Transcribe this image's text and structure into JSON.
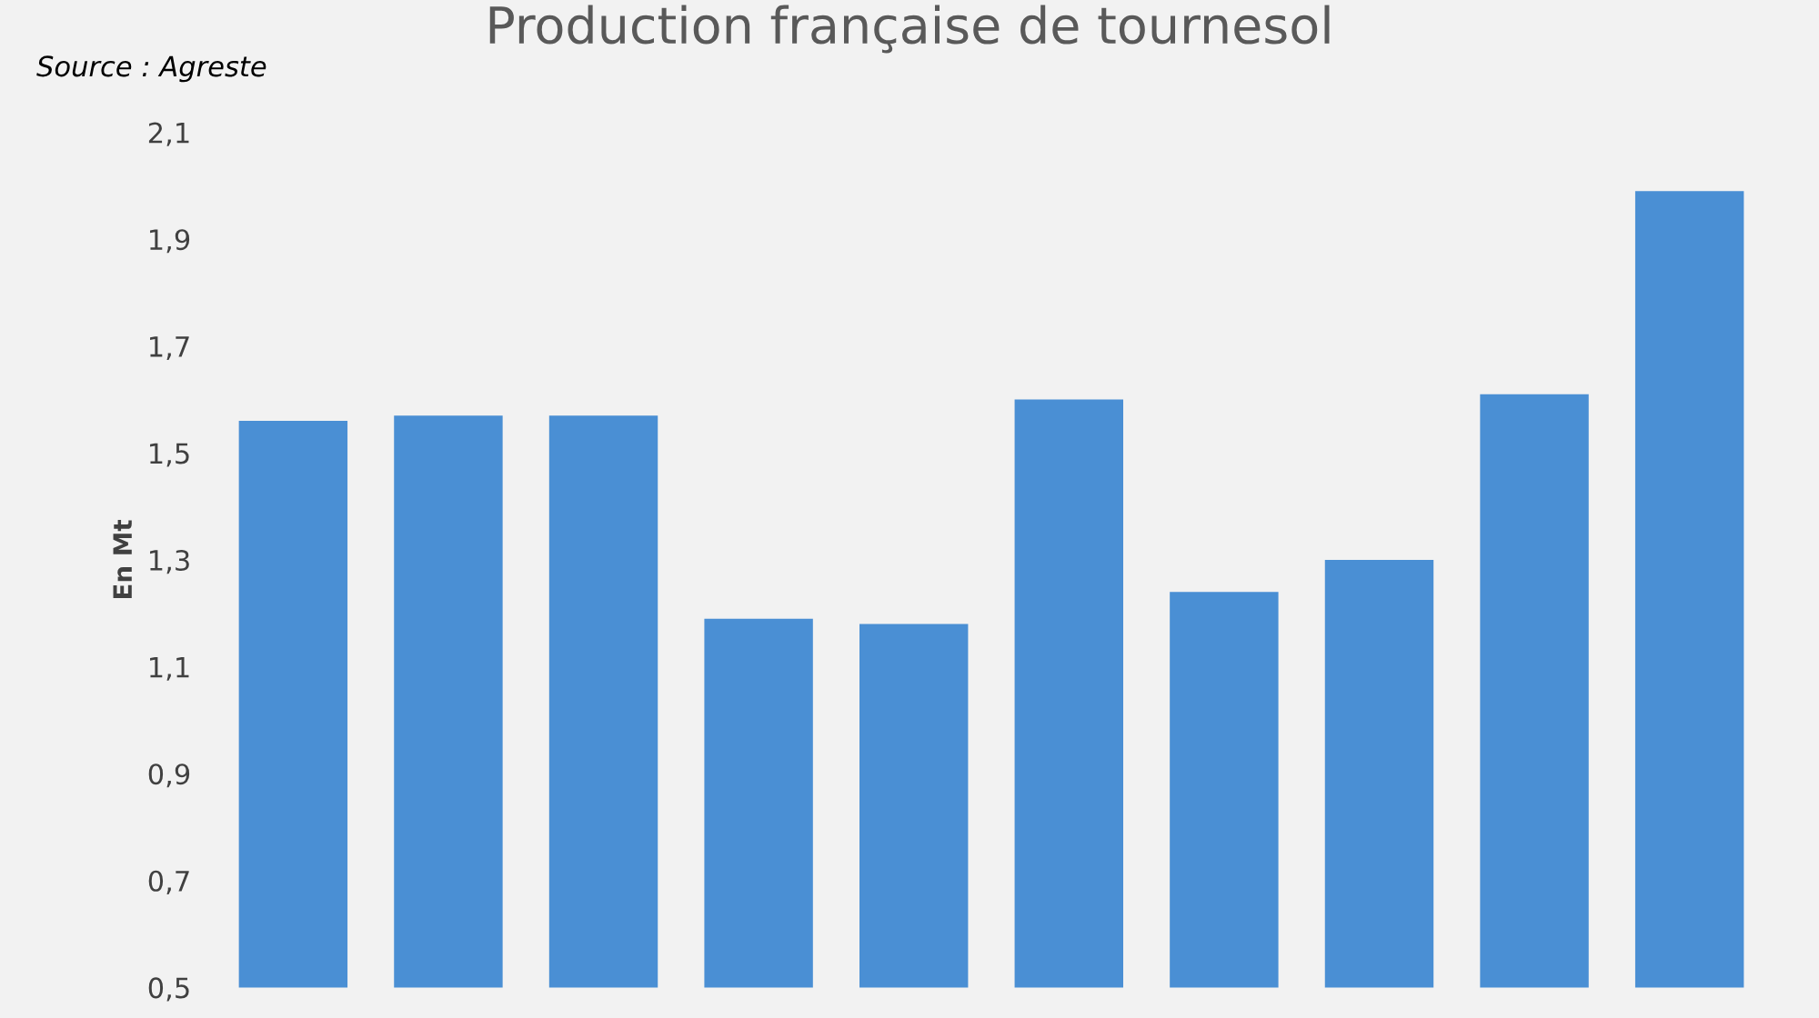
{
  "chart_data": {
    "type": "bar",
    "title": "Production française de tournesol",
    "ylabel": "En Mt",
    "annotations": [
      "Source : Agreste"
    ],
    "categories": [
      null,
      null,
      null,
      null,
      null,
      null,
      null,
      null,
      null,
      null
    ],
    "values": [
      1.56,
      1.57,
      1.57,
      1.19,
      1.18,
      1.6,
      1.24,
      1.3,
      1.61,
      1.99
    ],
    "color": "#4a8fd4",
    "ylim": [
      0.5,
      2.1
    ],
    "yticks": [
      {
        "value": 0.5,
        "label": "0,5"
      },
      {
        "value": 0.7,
        "label": "0,7"
      },
      {
        "value": 0.9,
        "label": "0,9"
      },
      {
        "value": 1.1,
        "label": "1,1"
      },
      {
        "value": 1.3,
        "label": "1,3"
      },
      {
        "value": 1.5,
        "label": "1,5"
      },
      {
        "value": 1.7,
        "label": "1,7"
      },
      {
        "value": 1.9,
        "label": "1,9"
      },
      {
        "value": 2.1,
        "label": "2,1"
      }
    ],
    "grid": false
  }
}
